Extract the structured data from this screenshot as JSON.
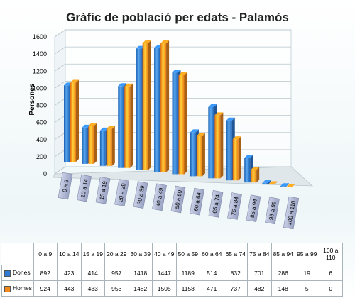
{
  "chart_data": {
    "type": "bar",
    "title": "Gràfic de població per edats - Palamós",
    "ylabel": "Persones",
    "xlabel": "",
    "ylim": [
      0,
      1600
    ],
    "yticks": [
      0,
      200,
      400,
      600,
      800,
      1000,
      1200,
      1400,
      1600
    ],
    "categories": [
      "0 a 9",
      "10 a 14",
      "15 a 19",
      "20 a 29",
      "30 a 39",
      "40 a 49",
      "50 a 59",
      "60 a 64",
      "65 a 74",
      "75 a 84",
      "85 a 94",
      "95 a 99",
      "100 a 110"
    ],
    "series": [
      {
        "name": "Dones",
        "color": "#2e7bd6",
        "values": [
          892,
          423,
          414,
          957,
          1418,
          1447,
          1189,
          514,
          832,
          701,
          286,
          19,
          6
        ]
      },
      {
        "name": "Homes",
        "color": "#f08a1c",
        "values": [
          924,
          443,
          433,
          953,
          1482,
          1505,
          1158,
          471,
          737,
          482,
          148,
          5,
          0
        ]
      }
    ],
    "grid": true,
    "legend": "data-table"
  }
}
